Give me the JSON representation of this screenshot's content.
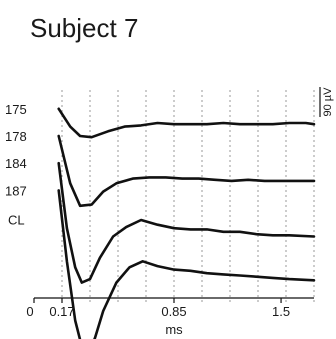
{
  "chart_data": {
    "type": "line",
    "title": "Subject 7",
    "xlabel": "ms",
    "ylabel": "",
    "xlim": [
      0,
      1.7
    ],
    "x_ticks": [
      {
        "value": 0,
        "label": "0"
      },
      {
        "value": 0.17,
        "label": "0.17"
      },
      {
        "value": 0.85,
        "label": "0.85"
      },
      {
        "value": 1.5,
        "label": "1.5"
      }
    ],
    "grid_x": [
      0.17,
      0.34,
      0.51,
      0.68,
      0.85,
      1.02,
      1.19,
      1.36,
      1.53,
      1.7
    ],
    "y_unit": "µV",
    "ylim": [
      -160,
      10
    ],
    "scale_bar": {
      "value": 90,
      "label": "90 µV"
    },
    "series": [
      {
        "name": "175",
        "offset": 0,
        "x": [
          0.15,
          0.22,
          0.28,
          0.35,
          0.45,
          0.55,
          0.65,
          0.75,
          0.85,
          0.95,
          1.05,
          1.15,
          1.25,
          1.35,
          1.45,
          1.55,
          1.65,
          1.7
        ],
        "y": [
          0,
          -15,
          -23,
          -24,
          -19,
          -15,
          -14,
          -12,
          -13,
          -13,
          -13,
          -12,
          -13,
          -13,
          -13,
          -12,
          -12,
          -13
        ]
      },
      {
        "name": "178",
        "offset": -23,
        "x": [
          0.15,
          0.22,
          0.28,
          0.35,
          0.42,
          0.5,
          0.6,
          0.7,
          0.8,
          0.9,
          1.0,
          1.1,
          1.2,
          1.3,
          1.4,
          1.5,
          1.6,
          1.7
        ],
        "y": [
          0,
          -40,
          -59,
          -58,
          -47,
          -40,
          -36,
          -35,
          -35,
          -36,
          -36,
          -37,
          -38,
          -37,
          -38,
          -38,
          -38,
          -38
        ]
      },
      {
        "name": "184",
        "offset": -46,
        "x": [
          0.15,
          0.2,
          0.25,
          0.29,
          0.34,
          0.4,
          0.48,
          0.56,
          0.65,
          0.75,
          0.85,
          0.95,
          1.05,
          1.15,
          1.25,
          1.35,
          1.45,
          1.55,
          1.7
        ],
        "y": [
          0,
          -55,
          -88,
          -101,
          -98,
          -80,
          -62,
          -54,
          -48,
          -52,
          -55,
          -56,
          -56,
          -58,
          -58,
          -60,
          -61,
          -61,
          -62
        ]
      },
      {
        "name": "187",
        "offset": -69,
        "x": [
          0.15,
          0.2,
          0.25,
          0.29,
          0.33,
          0.37,
          0.42,
          0.5,
          0.58,
          0.66,
          0.75,
          0.85,
          0.95,
          1.05,
          1.15,
          1.25,
          1.35,
          1.45,
          1.55,
          1.7
        ],
        "y": [
          0,
          -60,
          -110,
          -132,
          -137,
          -125,
          -102,
          -78,
          -65,
          -60,
          -64,
          -67,
          -68,
          -70,
          -71,
          -72,
          -73,
          -74,
          -75,
          -76
        ]
      }
    ],
    "side_label": "CL"
  }
}
